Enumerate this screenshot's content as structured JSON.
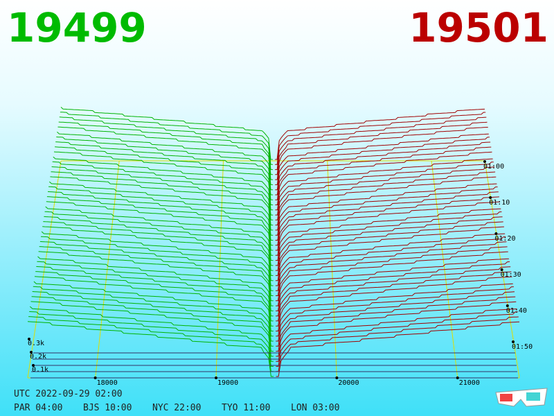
{
  "header": {
    "bid": "19499",
    "ask": "19501"
  },
  "price_axis": {
    "ticks": [
      "18000",
      "19000",
      "20000",
      "21000"
    ]
  },
  "time_axis": {
    "ticks": [
      "01:00",
      "01:10",
      "01:20",
      "01:30",
      "01:40",
      "01:50"
    ]
  },
  "depth_axis": {
    "ticks": [
      "0.3k",
      "0.2k",
      "0.1k"
    ]
  },
  "footer": {
    "utc": "UTC 2022-09-29 02:00",
    "clocks": [
      "PAR 04:00",
      "BJS 10:00",
      "NYC 22:00",
      "TYO 11:00",
      "LON 03:00"
    ]
  }
}
